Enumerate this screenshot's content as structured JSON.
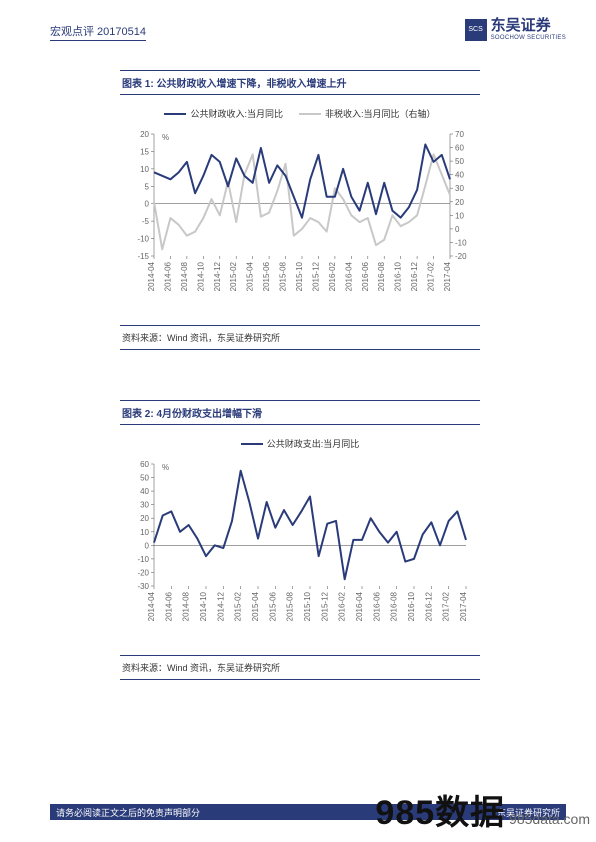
{
  "header": {
    "left": "宏观点评 20170514",
    "logo_mark": "SCS",
    "brand_cn": "东吴证券",
    "brand_en": "SOOCHOW SECURITIES"
  },
  "chart1": {
    "title": "图表 1:   公共财政收入增速下降，非税收入增速上升",
    "type": "line-dual-axis",
    "legend": [
      {
        "label": "公共财政收入:当月同比",
        "color": "#2a3b7a"
      },
      {
        "label": "非税收入:当月同比（右轴）",
        "color": "#c8c8c8"
      }
    ],
    "x_labels": [
      "2014-04",
      "2014-06",
      "2014-08",
      "2014-10",
      "2014-12",
      "2015-02",
      "2015-04",
      "2015-06",
      "2015-08",
      "2015-10",
      "2015-12",
      "2016-02",
      "2016-04",
      "2016-06",
      "2016-08",
      "2016-10",
      "2016-12",
      "2017-02",
      "2017-04"
    ],
    "left_axis": {
      "min": -15,
      "max": 20,
      "ticks": [
        -15,
        -10,
        -5,
        0,
        5,
        10,
        15,
        20
      ],
      "unit": "%"
    },
    "right_axis": {
      "min": -20,
      "max": 70,
      "ticks": [
        -20,
        -10,
        0,
        10,
        20,
        30,
        40,
        50,
        60,
        70
      ],
      "unit": ""
    },
    "series": [
      {
        "name": "公共财政收入:当月同比",
        "color": "#2a3b7a",
        "width": 2,
        "axis": "left",
        "values": [
          9,
          8,
          7,
          9,
          12,
          3,
          8,
          14,
          12,
          5,
          13,
          8,
          6,
          16,
          6,
          11,
          8,
          2,
          -4,
          7,
          14,
          2,
          2,
          10,
          2,
          -2,
          6,
          -3,
          6,
          -2,
          -4,
          -1,
          4,
          17,
          12,
          14,
          7
        ]
      },
      {
        "name": "非税收入:当月同比",
        "color": "#c8c8c8",
        "width": 2,
        "axis": "right",
        "values": [
          20,
          -15,
          8,
          3,
          -5,
          -2,
          8,
          22,
          10,
          35,
          5,
          40,
          55,
          9,
          12,
          28,
          48,
          -5,
          0,
          8,
          5,
          -2,
          30,
          22,
          10,
          5,
          8,
          -12,
          -8,
          10,
          2,
          5,
          10,
          32,
          55,
          40,
          25
        ]
      }
    ],
    "line_width": 2,
    "background_color": "#ffffff",
    "axis_color": "#666666",
    "title_fontsize": 10,
    "tick_fontsize": 8,
    "source": "资料来源：Wind 资讯，东吴证券研究所"
  },
  "chart2": {
    "title": "图表 2:  4月份财政支出增幅下滑",
    "type": "line",
    "legend": [
      {
        "label": "公共财政支出:当月同比",
        "color": "#2a3b7a"
      }
    ],
    "x_labels": [
      "2014-04",
      "2014-06",
      "2014-08",
      "2014-10",
      "2014-12",
      "2015-02",
      "2015-04",
      "2015-06",
      "2015-08",
      "2015-10",
      "2015-12",
      "2016-02",
      "2016-04",
      "2016-06",
      "2016-08",
      "2016-10",
      "2016-12",
      "2017-02",
      "2017-04"
    ],
    "left_axis": {
      "min": -30,
      "max": 60,
      "ticks": [
        -30,
        -20,
        -10,
        0,
        10,
        20,
        30,
        40,
        50,
        60
      ],
      "unit": "%"
    },
    "series": [
      {
        "name": "公共财政支出:当月同比",
        "color": "#2a3b7a",
        "width": 2,
        "axis": "left",
        "values": [
          2,
          22,
          25,
          10,
          15,
          5,
          -8,
          0,
          -2,
          18,
          55,
          32,
          5,
          32,
          13,
          26,
          15,
          25,
          36,
          -8,
          16,
          18,
          -25,
          4,
          4,
          20,
          10,
          2,
          10,
          -12,
          -10,
          8,
          17,
          0,
          18,
          25,
          4
        ]
      }
    ],
    "line_width": 2,
    "background_color": "#ffffff",
    "axis_color": "#666666",
    "title_fontsize": 10,
    "tick_fontsize": 8,
    "source": "资料来源：Wind 资讯，东吴证券研究所"
  },
  "footer": {
    "left": "请务必阅读正文之后的免责声明部分",
    "right": "东吴证券研究所"
  },
  "watermark": {
    "big": "985数据",
    "small": " 985data.com"
  },
  "colors": {
    "brand": "#2a3b7a",
    "grey_line": "#c8c8c8",
    "axis": "#666666",
    "text": "#333333"
  }
}
